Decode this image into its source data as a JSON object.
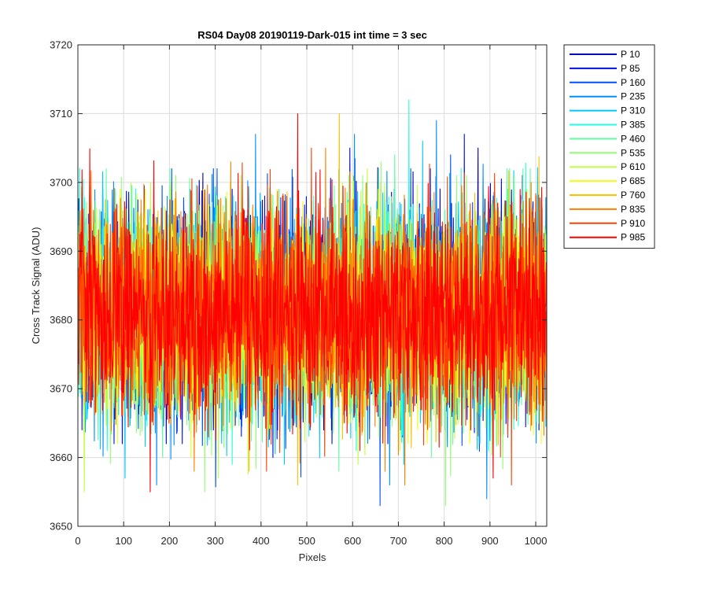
{
  "chart_data": {
    "type": "line",
    "title": "RS04 Day08 20190119-Dark-015 int time = 3 sec",
    "xlabel": "Pixels",
    "ylabel": "Cross Track Signal (ADU)",
    "xlim": [
      0,
      1024
    ],
    "ylim": [
      3650,
      3720
    ],
    "xticks": [
      0,
      100,
      200,
      300,
      400,
      500,
      600,
      700,
      800,
      900,
      1000
    ],
    "yticks": [
      3650,
      3660,
      3670,
      3680,
      3690,
      3700,
      3710,
      3720
    ],
    "grid": true,
    "legend_position": "outside-top-right",
    "series_note_values": {
      "x_start": 1,
      "x_end": 1024,
      "mean": 3681,
      "noise_std": 7.5
    },
    "series": [
      {
        "name": "P 10",
        "color": "#0000bf",
        "max": 3705,
        "min": 3662,
        "mean": 3681
      },
      {
        "name": "P 85",
        "color": "#0010e0",
        "max": 3707,
        "min": 3660,
        "mean": 3681
      },
      {
        "name": "P 160",
        "color": "#0050ff",
        "max": 3704,
        "min": 3653,
        "mean": 3681
      },
      {
        "name": "P 235",
        "color": "#0090ff",
        "max": 3709,
        "min": 3654,
        "mean": 3681
      },
      {
        "name": "P 310",
        "color": "#00c8ff",
        "max": 3706,
        "min": 3657,
        "mean": 3681
      },
      {
        "name": "P 385",
        "color": "#20ffe0",
        "max": 3712,
        "min": 3659,
        "mean": 3681
      },
      {
        "name": "P 460",
        "color": "#60ffa0",
        "max": 3704,
        "min": 3658,
        "mean": 3681
      },
      {
        "name": "P 535",
        "color": "#90ff70",
        "max": 3703,
        "min": 3653,
        "mean": 3681
      },
      {
        "name": "P 610",
        "color": "#c0ff40",
        "max": 3702,
        "min": 3655,
        "mean": 3681
      },
      {
        "name": "P 685",
        "color": "#f0ff10",
        "max": 3701,
        "min": 3660,
        "mean": 3681
      },
      {
        "name": "P 760",
        "color": "#ffc000",
        "max": 3710,
        "min": 3656,
        "mean": 3681
      },
      {
        "name": "P 835",
        "color": "#ff8000",
        "max": 3705,
        "min": 3656,
        "mean": 3681
      },
      {
        "name": "P 910",
        "color": "#ff4000",
        "max": 3705,
        "min": 3656,
        "mean": 3681
      },
      {
        "name": "P 985",
        "color": "#ff0000",
        "max": 3710,
        "min": 3655,
        "mean": 3681
      }
    ]
  }
}
